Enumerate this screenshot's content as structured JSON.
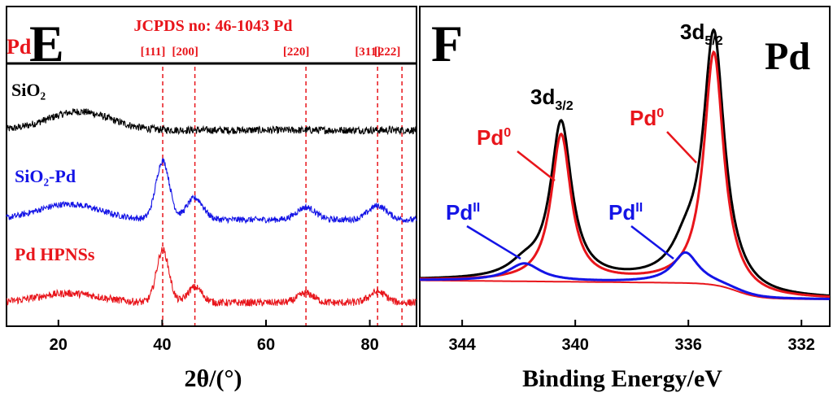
{
  "colors": {
    "black": "#000000",
    "red": "#e8151b",
    "blue": "#1414e6",
    "background": "#ffffff"
  },
  "chart_data": [
    {
      "type": "line",
      "panel_label": "E",
      "title": "JCPDS no: 46-1043 Pd",
      "reference_label": "Pd",
      "xlabel": "2θ/(°)",
      "ylabel": "",
      "xlim": [
        10,
        89
      ],
      "xticks": [
        20,
        40,
        60,
        80
      ],
      "reference_lines": [
        {
          "label": "[111]",
          "x": 40.1
        },
        {
          "label": "[200]",
          "x": 46.3
        },
        {
          "label": "[220]",
          "x": 67.7
        },
        {
          "label": "[311]",
          "x": 81.5
        },
        {
          "label": "[222]",
          "x": 86.2
        }
      ],
      "series": [
        {
          "name": "SiO₂",
          "color": "#000000",
          "baseline": 0.0,
          "noise": 0.12,
          "peaks": [
            {
              "x": 24,
              "height": 0.6,
              "width": 6
            }
          ],
          "offset": 2.8
        },
        {
          "name": "SiO₂-Pd",
          "color": "#1414e6",
          "baseline": 0.0,
          "noise": 0.1,
          "peaks": [
            {
              "x": 22,
              "height": 0.5,
              "width": 6
            },
            {
              "x": 40.1,
              "height": 1.9,
              "width": 1.3
            },
            {
              "x": 46.3,
              "height": 0.7,
              "width": 1.6
            },
            {
              "x": 67.7,
              "height": 0.4,
              "width": 1.8
            },
            {
              "x": 81.5,
              "height": 0.45,
              "width": 1.8
            }
          ],
          "offset": 1.4
        },
        {
          "name": "Pd HPNSs",
          "color": "#e8151b",
          "baseline": 0.0,
          "noise": 0.12,
          "peaks": [
            {
              "x": 22,
              "height": 0.3,
              "width": 6
            },
            {
              "x": 40.1,
              "height": 1.7,
              "width": 1.2
            },
            {
              "x": 46.3,
              "height": 0.5,
              "width": 1.4
            },
            {
              "x": 67.7,
              "height": 0.3,
              "width": 1.6
            },
            {
              "x": 81.5,
              "height": 0.35,
              "width": 1.6
            }
          ],
          "offset": 0.0
        }
      ]
    },
    {
      "type": "line",
      "panel_label": "F",
      "element_label": "Pd",
      "xlabel": "Binding Energy/eV",
      "ylabel": "",
      "xlim": [
        345.5,
        331
      ],
      "xticks": [
        344,
        340,
        336,
        332
      ],
      "peak_labels": [
        {
          "text": "3d",
          "sub": "3/2",
          "x": 340.5
        },
        {
          "text": "3d",
          "sub": "5/2",
          "x": 335.1
        }
      ],
      "component_labels": [
        {
          "text": "Pd",
          "sup": "0",
          "color": "#e8151b",
          "near": "3d3/2"
        },
        {
          "text": "Pd",
          "sup": "0",
          "color": "#e8151b",
          "near": "3d5/2"
        },
        {
          "text": "Pd",
          "sup": "II",
          "color": "#1414e6",
          "near": "3d3/2"
        },
        {
          "text": "Pd",
          "sup": "II",
          "color": "#1414e6",
          "near": "3d5/2"
        }
      ],
      "series": [
        {
          "name": "envelope",
          "color": "#000000",
          "peaks": [
            {
              "x": 340.5,
              "height": 0.62,
              "width": 0.45
            },
            {
              "x": 335.1,
              "height": 0.98,
              "width": 0.45
            },
            {
              "x": 341.8,
              "height": 0.05,
              "width": 0.7
            },
            {
              "x": 336.1,
              "height": 0.1,
              "width": 0.6
            }
          ]
        },
        {
          "name": "Pd0",
          "color": "#e8151b",
          "peaks": [
            {
              "x": 340.5,
              "height": 0.58,
              "width": 0.42
            },
            {
              "x": 335.1,
              "height": 0.92,
              "width": 0.42
            }
          ]
        },
        {
          "name": "PdII",
          "color": "#1414e6",
          "peaks": [
            {
              "x": 341.8,
              "height": 0.07,
              "width": 0.7
            },
            {
              "x": 336.1,
              "height": 0.12,
              "width": 0.55
            }
          ]
        }
      ]
    }
  ]
}
